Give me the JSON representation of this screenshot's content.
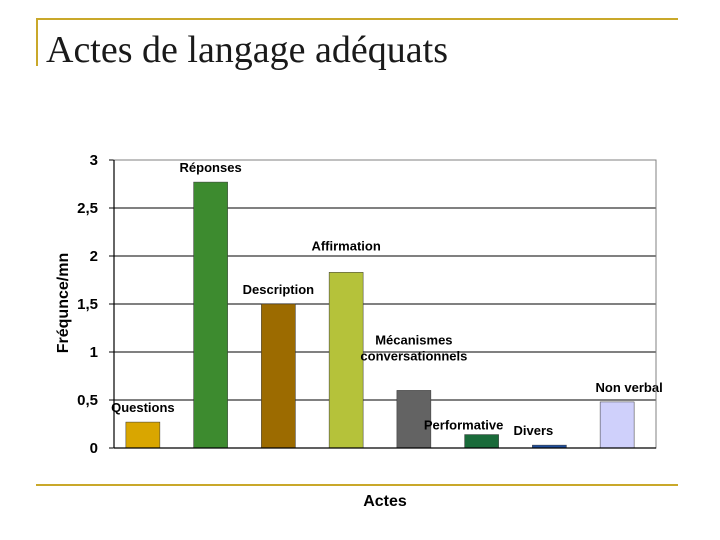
{
  "slide": {
    "title": "Actes de langage adéquats",
    "accent_color": "#c9a82a"
  },
  "chart_data": {
    "type": "bar",
    "title": "",
    "xlabel": "Actes",
    "ylabel": "Fréqunce/mn",
    "ylim": [
      0,
      3
    ],
    "yticks": [
      "0",
      "0,5",
      "1",
      "1,5",
      "2",
      "2,5",
      "3"
    ],
    "grid": true,
    "legend": "none",
    "categories": [
      "Questions",
      "Réponses",
      "Description",
      "Affirmation",
      "Mécanismes conversationnels",
      "Performative",
      "Divers",
      "Non verbal"
    ],
    "values": [
      0.27,
      2.77,
      1.5,
      1.83,
      0.6,
      0.14,
      0.03,
      0.48
    ],
    "colors": [
      "#d9a600",
      "#3d8b2f",
      "#9c6b00",
      "#b5c23a",
      "#636363",
      "#1a6b3a",
      "#1f4e9c",
      "#cfd0fb"
    ]
  }
}
